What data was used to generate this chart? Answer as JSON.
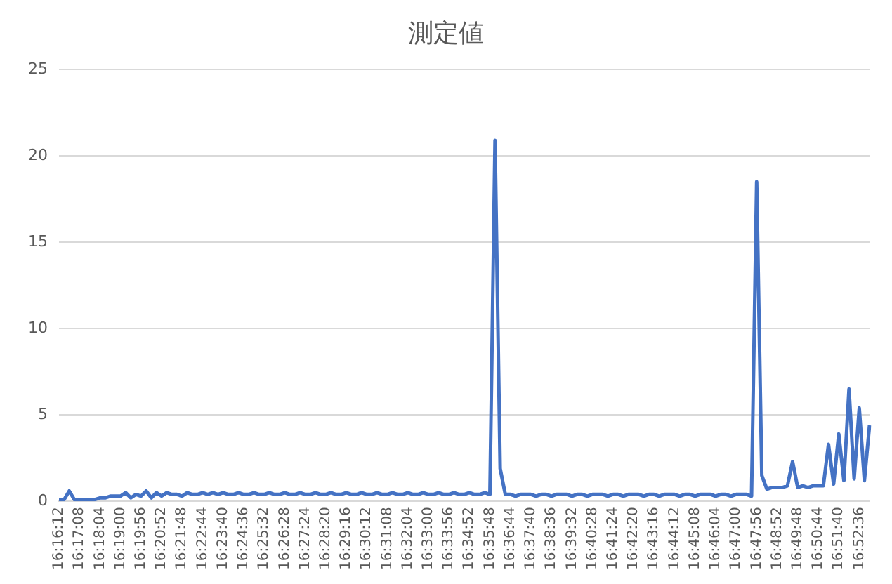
{
  "chart_data": {
    "type": "line",
    "title": "測定値",
    "categories": [
      "16:16:12",
      null,
      null,
      null,
      "16:17:08",
      null,
      null,
      null,
      "16:18:04",
      null,
      null,
      null,
      "16:19:00",
      null,
      null,
      null,
      "16:19:56",
      null,
      null,
      null,
      "16:20:52",
      null,
      null,
      null,
      "16:21:48",
      null,
      null,
      null,
      "16:22:44",
      null,
      null,
      null,
      "16:23:40",
      null,
      null,
      null,
      "16:24:36",
      null,
      null,
      null,
      "16:25:32",
      null,
      null,
      null,
      "16:26:28",
      null,
      null,
      null,
      "16:27:24",
      null,
      null,
      null,
      "16:28:20",
      null,
      null,
      null,
      "16:29:16",
      null,
      null,
      null,
      "16:30:12",
      null,
      null,
      null,
      "16:31:08",
      null,
      null,
      null,
      "16:32:04",
      null,
      null,
      null,
      "16:33:00",
      null,
      null,
      null,
      "16:33:56",
      null,
      null,
      null,
      "16:34:52",
      null,
      null,
      null,
      "16:35:48",
      null,
      null,
      null,
      "16:36:44",
      null,
      null,
      null,
      "16:37:40",
      null,
      null,
      null,
      "16:38:36",
      null,
      null,
      null,
      "16:39:32",
      null,
      null,
      null,
      "16:40:28",
      null,
      null,
      null,
      "16:41:24",
      null,
      null,
      null,
      "16:42:20",
      null,
      null,
      null,
      "16:43:16",
      null,
      null,
      null,
      "16:44:12",
      null,
      null,
      null,
      "16:45:08",
      null,
      null,
      null,
      "16:46:04",
      null,
      null,
      null,
      "16:47:00",
      null,
      null,
      null,
      "16:47:56",
      null,
      null,
      null,
      "16:48:52",
      null,
      null,
      null,
      "16:49:48",
      null,
      null,
      null,
      "16:50:44",
      null,
      null,
      null,
      "16:51:40",
      null,
      null,
      null,
      "16:52:36",
      null,
      null
    ],
    "series": [
      {
        "color": "#4472c4",
        "values": [
          0.1,
          0.1,
          0.6,
          0.1,
          0.1,
          0.1,
          0.1,
          0.1,
          0.2,
          0.2,
          0.3,
          0.3,
          0.3,
          0.5,
          0.2,
          0.4,
          0.3,
          0.6,
          0.2,
          0.5,
          0.3,
          0.5,
          0.4,
          0.4,
          0.3,
          0.5,
          0.4,
          0.4,
          0.5,
          0.4,
          0.5,
          0.4,
          0.5,
          0.4,
          0.4,
          0.5,
          0.4,
          0.4,
          0.5,
          0.4,
          0.4,
          0.5,
          0.4,
          0.4,
          0.5,
          0.4,
          0.4,
          0.5,
          0.4,
          0.4,
          0.5,
          0.4,
          0.4,
          0.5,
          0.4,
          0.4,
          0.5,
          0.4,
          0.4,
          0.5,
          0.4,
          0.4,
          0.5,
          0.4,
          0.4,
          0.5,
          0.4,
          0.4,
          0.5,
          0.4,
          0.4,
          0.5,
          0.4,
          0.4,
          0.5,
          0.4,
          0.4,
          0.5,
          0.4,
          0.4,
          0.5,
          0.4,
          0.4,
          0.5,
          0.4,
          20.9,
          1.9,
          0.4,
          0.4,
          0.3,
          0.4,
          0.4,
          0.4,
          0.3,
          0.4,
          0.4,
          0.3,
          0.4,
          0.4,
          0.4,
          0.3,
          0.4,
          0.4,
          0.3,
          0.4,
          0.4,
          0.4,
          0.3,
          0.4,
          0.4,
          0.3,
          0.4,
          0.4,
          0.4,
          0.3,
          0.4,
          0.4,
          0.3,
          0.4,
          0.4,
          0.4,
          0.3,
          0.4,
          0.4,
          0.3,
          0.4,
          0.4,
          0.4,
          0.3,
          0.4,
          0.4,
          0.3,
          0.4,
          0.4,
          0.4,
          0.3,
          18.5,
          1.5,
          0.7,
          0.8,
          0.8,
          0.8,
          0.9,
          2.3,
          0.8,
          0.9,
          0.8,
          0.9,
          0.9,
          0.9,
          3.3,
          1.0,
          3.9,
          1.2,
          6.5,
          1.3,
          5.4,
          1.2,
          4.4
        ]
      }
    ],
    "ylim": [
      0,
      25
    ],
    "yticks": [
      0,
      5,
      10,
      15,
      20,
      25
    ],
    "grid": "y",
    "legend": false,
    "marker": "none",
    "line_style": "solid"
  }
}
